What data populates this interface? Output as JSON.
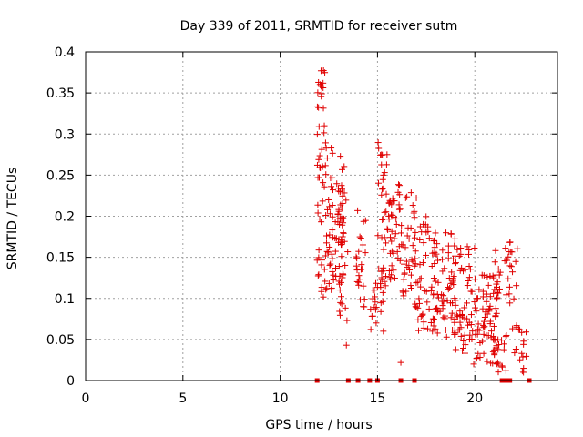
{
  "chart_data": {
    "type": "scatter",
    "title": "Day 339 of 2011, SRMTID for receiver sutm",
    "xlabel": "GPS time / hours",
    "ylabel": "SRMTID / TECUs",
    "xlim": [
      0,
      24.25
    ],
    "ylim": [
      0,
      0.4
    ],
    "xticks": [
      0,
      5,
      10,
      15,
      20
    ],
    "xtick_labels": [
      "0",
      "5",
      "10",
      "15",
      "20"
    ],
    "yticks": [
      0,
      0.05,
      0.1,
      0.15,
      0.2,
      0.25,
      0.3,
      0.35,
      0.4
    ],
    "ytick_labels": [
      "0",
      "0.05",
      "0.1",
      "0.15",
      "0.2",
      "0.25",
      "0.3",
      "0.35",
      "0.4"
    ],
    "grid": true,
    "marker": "+",
    "series_color": "#e00000",
    "series": [
      {
        "name": "SRMTID",
        "clusters": [
          {
            "x_range": [
              11.9,
              12.3
            ],
            "y_range": [
              0.09,
              0.38
            ],
            "count": 45
          },
          {
            "x_range": [
              12.3,
              12.7
            ],
            "y_range": [
              0.1,
              0.29
            ],
            "count": 35
          },
          {
            "x_range": [
              12.7,
              13.3
            ],
            "y_range": [
              0.12,
              0.24
            ],
            "count": 45
          },
          {
            "x_range": [
              13.0,
              13.5
            ],
            "y_range": [
              0.07,
              0.28
            ],
            "count": 25
          },
          {
            "x_range": [
              13.9,
              14.4
            ],
            "y_range": [
              0.08,
              0.21
            ],
            "count": 25
          },
          {
            "x_range": [
              14.6,
              15.0
            ],
            "y_range": [
              0.06,
              0.12
            ],
            "count": 15
          },
          {
            "x_range": [
              15.0,
              15.5
            ],
            "y_range": [
              0.08,
              0.29
            ],
            "count": 40
          },
          {
            "x_range": [
              15.4,
              16.2
            ],
            "y_range": [
              0.12,
              0.24
            ],
            "count": 40
          },
          {
            "x_range": [
              16.1,
              17.0
            ],
            "y_range": [
              0.1,
              0.23
            ],
            "count": 40
          },
          {
            "x_range": [
              16.9,
              18.0
            ],
            "y_range": [
              0.05,
              0.2
            ],
            "count": 55
          },
          {
            "x_range": [
              17.8,
              19.0
            ],
            "y_range": [
              0.05,
              0.18
            ],
            "count": 60
          },
          {
            "x_range": [
              18.8,
              20.0
            ],
            "y_range": [
              0.03,
              0.17
            ],
            "count": 60
          },
          {
            "x_range": [
              19.8,
              21.2
            ],
            "y_range": [
              0.02,
              0.13
            ],
            "count": 80
          },
          {
            "x_range": [
              21.0,
              22.2
            ],
            "y_range": [
              0.01,
              0.17
            ],
            "count": 50
          },
          {
            "x_range": [
              22.2,
              22.8
            ],
            "y_range": [
              0.01,
              0.07
            ],
            "count": 12
          }
        ],
        "outliers": [
          {
            "x": 12.1,
            "y": 0.377
          },
          {
            "x": 12.1,
            "y": 0.358
          },
          {
            "x": 13.4,
            "y": 0.043
          },
          {
            "x": 15.3,
            "y": 0.06
          },
          {
            "x": 16.2,
            "y": 0.022
          },
          {
            "x": 20.1,
            "y": 0.1
          },
          {
            "x": 21.6,
            "y": 0.012
          },
          {
            "x": 21.8,
            "y": 0.168
          },
          {
            "x": 22.5,
            "y": 0.01
          }
        ]
      }
    ],
    "zero_markers_x": [
      11.9,
      13.5,
      14.0,
      14.6,
      15.0,
      16.2,
      16.9,
      21.4,
      21.6,
      21.8,
      22.8
    ]
  }
}
